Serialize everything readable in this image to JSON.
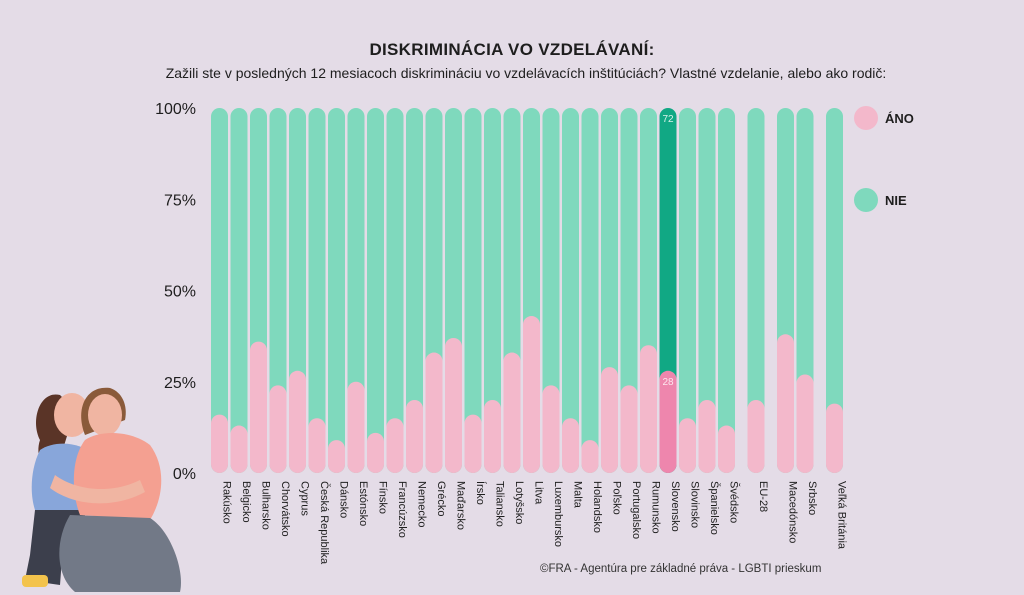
{
  "chart_data": {
    "type": "bar",
    "stacked": true,
    "title": "DISKRIMINÁCIA VO VZDELÁVANÍ:",
    "subtitle": "Zažili ste v posledných 12 mesiacoch diskrimináciu vo vzdelávacích inštitúciách? Vlastné vzdelanie, alebo ako rodič:",
    "ylim": [
      0,
      100
    ],
    "yticks": [
      "0%",
      "25%",
      "50%",
      "75%",
      "100%"
    ],
    "categories": [
      "Rakúsko",
      "Belgicko",
      "Bulharsko",
      "Chorvátsko",
      "Cyprus",
      "Česká Republika",
      "Dánsko",
      "Estónsko",
      "Fínsko",
      "Francúzsko",
      "Nemecko",
      "Grécko",
      "Maďarsko",
      "Írsko",
      "Taliansko",
      "Lotyšsko",
      "Litva",
      "Luxembursko",
      "Malta",
      "Holandsko",
      "Poľsko",
      "Portugalsko",
      "Rumunsko",
      "Slovensko",
      "Slovinsko",
      "Španielsko",
      "Švédsko",
      "EU-28",
      "Macedónsko",
      "Srbsko",
      "Veľká Británia"
    ],
    "group_gap_before": [
      "EU-28",
      "Macedónsko",
      "Veľká Británia"
    ],
    "highlight": "Slovensko",
    "series": [
      {
        "name": "ÁNO",
        "color": "#f3b8cb",
        "highlight_color": "#ee86ad",
        "values": [
          16,
          13,
          36,
          24,
          28,
          15,
          9,
          25,
          11,
          15,
          20,
          33,
          37,
          16,
          20,
          33,
          43,
          24,
          15,
          9,
          29,
          24,
          35,
          28,
          15,
          20,
          13,
          20,
          38,
          27,
          19
        ]
      },
      {
        "name": "NIE",
        "color": "#7fd9bd",
        "highlight_color": "#11a884",
        "values": [
          84,
          87,
          64,
          76,
          72,
          85,
          91,
          75,
          89,
          85,
          80,
          67,
          63,
          84,
          80,
          67,
          57,
          76,
          85,
          91,
          71,
          76,
          65,
          72,
          85,
          80,
          87,
          80,
          62,
          73,
          81
        ]
      }
    ],
    "highlight_labels": {
      "ÁNO": "28",
      "NIE": "72"
    },
    "legend": {
      "position": "right"
    }
  },
  "source": "©FRA - Agentúra pre základné práva - LGBTI prieskum"
}
